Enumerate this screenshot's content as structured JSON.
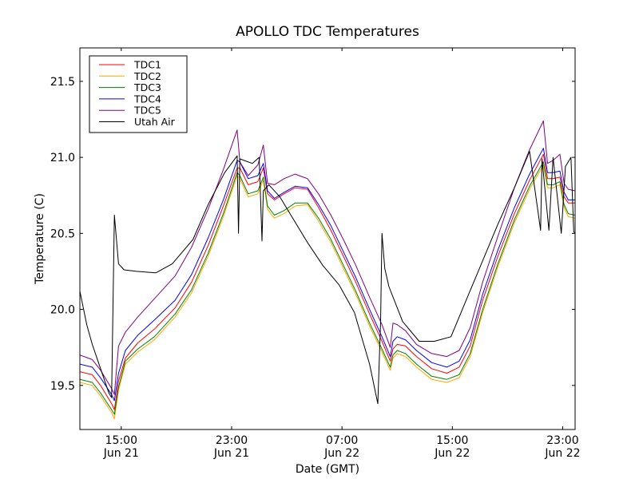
{
  "chart_data": {
    "type": "line",
    "title": "APOLLO TDC Temperatures",
    "xlabel": "Date (GMT)",
    "ylabel": "Temperature (C)",
    "x_units": "hours since Jun 21 00:00 GMT",
    "xlim": [
      12.0,
      47.9
    ],
    "ylim": [
      19.21,
      21.72
    ],
    "grid": false,
    "legend_position": "top-left",
    "xticks": [
      {
        "value": 15,
        "label_time": "15:00",
        "label_date": "Jun 21"
      },
      {
        "value": 23,
        "label_time": "23:00",
        "label_date": "Jun 21"
      },
      {
        "value": 31,
        "label_time": "07:00",
        "label_date": "Jun 22"
      },
      {
        "value": 39,
        "label_time": "15:00",
        "label_date": "Jun 22"
      },
      {
        "value": 47,
        "label_time": "23:00",
        "label_date": "Jun 22"
      }
    ],
    "yticks": [
      {
        "value": 19.5,
        "label": "19.5"
      },
      {
        "value": 20.0,
        "label": "20.0"
      },
      {
        "value": 20.5,
        "label": "20.5"
      },
      {
        "value": 21.0,
        "label": "21.0"
      },
      {
        "value": 21.5,
        "label": "21.5"
      }
    ],
    "series": [
      {
        "name": "TDC1",
        "color": "#ff0000",
        "x": [
          12.0,
          12.9,
          13.5,
          14.3,
          14.5,
          14.8,
          15.3,
          16.2,
          17.4,
          18.9,
          20.1,
          21.3,
          22.4,
          23.4,
          23.6,
          24.2,
          24.9,
          25.3,
          25.6,
          26.1,
          26.8,
          27.6,
          28.5,
          29.3,
          30.2,
          31.1,
          32.0,
          33.0,
          33.9,
          34.5,
          34.7,
          35.0,
          35.6,
          36.4,
          37.5,
          38.6,
          39.5,
          40.3,
          41.2,
          42.3,
          43.5,
          44.6,
          45.6,
          45.9,
          46.3,
          46.8,
          47.1,
          47.4,
          47.9
        ],
        "y": [
          19.59,
          19.57,
          19.5,
          19.38,
          19.34,
          19.53,
          19.68,
          19.78,
          19.87,
          20.01,
          20.18,
          20.42,
          20.68,
          20.93,
          20.93,
          20.82,
          20.84,
          20.93,
          20.76,
          20.72,
          20.76,
          20.8,
          20.79,
          20.67,
          20.52,
          20.35,
          20.18,
          19.97,
          19.79,
          19.66,
          19.74,
          19.77,
          19.76,
          19.69,
          19.61,
          19.58,
          19.62,
          19.76,
          20.06,
          20.35,
          20.63,
          20.85,
          21.02,
          20.86,
          20.86,
          20.87,
          20.74,
          20.7,
          20.7
        ]
      },
      {
        "name": "TDC2",
        "color": "#ffa500",
        "x": [
          12.0,
          12.9,
          13.5,
          14.3,
          14.5,
          14.8,
          15.3,
          16.2,
          17.4,
          18.9,
          20.1,
          21.3,
          22.4,
          23.4,
          23.6,
          24.2,
          24.9,
          25.3,
          25.6,
          26.1,
          26.8,
          27.6,
          28.5,
          29.3,
          30.2,
          31.1,
          32.0,
          33.0,
          33.9,
          34.5,
          34.7,
          35.0,
          35.6,
          36.4,
          37.5,
          38.6,
          39.5,
          40.3,
          41.2,
          42.3,
          43.5,
          44.6,
          45.6,
          45.9,
          46.3,
          46.8,
          47.1,
          47.4,
          47.9
        ],
        "y": [
          19.52,
          19.5,
          19.43,
          19.32,
          19.28,
          19.47,
          19.64,
          19.72,
          19.8,
          19.95,
          20.11,
          20.35,
          20.61,
          20.88,
          20.86,
          20.74,
          20.76,
          20.85,
          20.66,
          20.6,
          20.63,
          20.68,
          20.69,
          20.58,
          20.44,
          20.27,
          20.1,
          19.89,
          19.72,
          19.6,
          19.68,
          19.71,
          19.69,
          19.62,
          19.54,
          19.52,
          19.55,
          19.69,
          19.98,
          20.28,
          20.57,
          20.79,
          20.95,
          20.8,
          20.8,
          20.82,
          20.67,
          20.61,
          20.6
        ]
      },
      {
        "name": "TDC3",
        "color": "#008000",
        "x": [
          12.0,
          12.9,
          13.5,
          14.3,
          14.5,
          14.8,
          15.3,
          16.2,
          17.4,
          18.9,
          20.1,
          21.3,
          22.4,
          23.4,
          23.6,
          24.2,
          24.9,
          25.3,
          25.6,
          26.1,
          26.8,
          27.6,
          28.5,
          29.3,
          30.2,
          31.1,
          32.0,
          33.0,
          33.9,
          34.5,
          34.7,
          35.0,
          35.6,
          36.4,
          37.5,
          38.6,
          39.5,
          40.3,
          41.2,
          42.3,
          43.5,
          44.6,
          45.6,
          45.9,
          46.3,
          46.8,
          47.1,
          47.4,
          47.9
        ],
        "y": [
          19.54,
          19.52,
          19.45,
          19.34,
          19.31,
          19.49,
          19.66,
          19.74,
          19.82,
          19.97,
          20.13,
          20.37,
          20.63,
          20.9,
          20.88,
          20.76,
          20.78,
          20.87,
          20.68,
          20.62,
          20.65,
          20.7,
          20.7,
          20.6,
          20.46,
          20.29,
          20.12,
          19.91,
          19.74,
          19.62,
          19.7,
          19.73,
          19.71,
          19.64,
          19.56,
          19.54,
          19.57,
          19.71,
          20.0,
          20.3,
          20.59,
          20.81,
          20.97,
          20.82,
          20.82,
          20.84,
          20.69,
          20.63,
          20.62
        ]
      },
      {
        "name": "TDC4",
        "color": "#0000ff",
        "x": [
          12.0,
          12.9,
          13.5,
          14.3,
          14.5,
          14.8,
          15.3,
          16.2,
          17.4,
          18.9,
          20.1,
          21.3,
          22.4,
          23.4,
          23.6,
          24.2,
          24.9,
          25.3,
          25.6,
          26.1,
          26.8,
          27.6,
          28.5,
          29.3,
          30.2,
          31.1,
          32.0,
          33.0,
          33.9,
          34.5,
          34.7,
          35.0,
          35.6,
          36.4,
          37.5,
          38.6,
          39.5,
          40.3,
          41.2,
          42.3,
          43.5,
          44.6,
          45.6,
          45.9,
          46.3,
          46.8,
          47.1,
          47.4,
          47.9
        ],
        "y": [
          19.64,
          19.62,
          19.55,
          19.44,
          19.4,
          19.58,
          19.73,
          19.83,
          19.93,
          20.06,
          20.23,
          20.47,
          20.72,
          20.98,
          20.97,
          20.86,
          20.88,
          20.96,
          20.78,
          20.73,
          20.77,
          20.81,
          20.8,
          20.69,
          20.55,
          20.38,
          20.21,
          20.0,
          19.82,
          19.69,
          19.79,
          19.82,
          19.8,
          19.73,
          19.65,
          19.62,
          19.66,
          19.8,
          20.1,
          20.39,
          20.67,
          20.89,
          21.06,
          20.9,
          20.9,
          20.91,
          20.77,
          20.72,
          20.72
        ]
      },
      {
        "name": "TDC5",
        "color": "#800080",
        "x": [
          12.0,
          12.9,
          13.5,
          14.3,
          14.5,
          14.8,
          15.3,
          16.2,
          17.4,
          18.9,
          20.1,
          21.3,
          22.4,
          23.4,
          23.6,
          24.2,
          24.9,
          25.3,
          25.6,
          26.1,
          26.8,
          27.6,
          28.5,
          29.3,
          30.2,
          31.1,
          32.0,
          33.0,
          33.9,
          34.5,
          34.7,
          35.0,
          35.6,
          36.4,
          37.5,
          38.6,
          39.5,
          40.3,
          41.2,
          42.3,
          43.5,
          44.6,
          45.6,
          45.9,
          46.3,
          46.8,
          47.1,
          47.4,
          47.9
        ],
        "y": [
          19.7,
          19.67,
          19.6,
          19.48,
          19.44,
          19.76,
          19.85,
          19.95,
          20.07,
          20.22,
          20.41,
          20.66,
          20.92,
          21.18,
          20.97,
          20.88,
          20.95,
          21.08,
          20.83,
          20.82,
          20.86,
          20.89,
          20.86,
          20.76,
          20.62,
          20.46,
          20.29,
          20.08,
          19.9,
          19.75,
          19.91,
          19.9,
          19.86,
          19.77,
          19.71,
          19.69,
          19.73,
          19.88,
          20.18,
          20.48,
          20.8,
          21.05,
          21.24,
          20.96,
          20.98,
          21.02,
          20.83,
          20.79,
          20.78
        ]
      },
      {
        "name": "Utah Air",
        "color": "#000000",
        "x": [
          12.0,
          12.5,
          12.9,
          13.5,
          14.1,
          14.3,
          14.5,
          14.8,
          15.2,
          16.1,
          17.5,
          18.7,
          20.2,
          21.3,
          22.5,
          23.4,
          23.5,
          23.6,
          24.5,
          25.0,
          25.2,
          25.3,
          25.7,
          26.5,
          27.3,
          28.5,
          29.6,
          30.8,
          31.9,
          33.0,
          33.6,
          33.8,
          33.9,
          34.1,
          34.4,
          35.4,
          36.6,
          37.7,
          38.9,
          40.0,
          41.2,
          42.3,
          43.5,
          44.6,
          45.4,
          45.5,
          46.0,
          46.3,
          46.9,
          47.2,
          47.6,
          47.8,
          47.9
        ],
        "y": [
          20.12,
          19.9,
          19.77,
          19.61,
          19.45,
          19.42,
          20.62,
          20.3,
          20.26,
          20.25,
          20.24,
          20.3,
          20.46,
          20.69,
          20.9,
          21.01,
          20.5,
          20.99,
          20.96,
          21.0,
          20.45,
          20.78,
          20.82,
          20.74,
          20.62,
          20.44,
          20.29,
          20.16,
          19.98,
          19.64,
          19.38,
          19.92,
          20.5,
          20.27,
          20.15,
          19.92,
          19.79,
          19.79,
          19.82,
          20.06,
          20.32,
          20.56,
          20.8,
          21.04,
          20.52,
          20.99,
          20.52,
          21.0,
          20.5,
          20.94,
          21.0,
          20.51,
          20.5
        ]
      }
    ]
  }
}
